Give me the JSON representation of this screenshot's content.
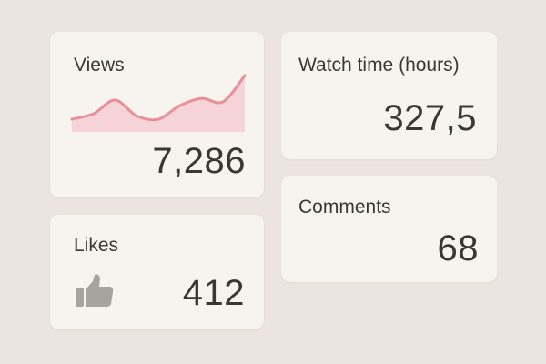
{
  "cards": {
    "views": {
      "title": "Views",
      "value": "7,286",
      "sparkline_color": "#e8909a",
      "sparkline_fill": "#f6d3d6",
      "sparkline": [
        0.2,
        0.3,
        0.55,
        0.26,
        0.2,
        0.45,
        0.58,
        0.52,
        1.0
      ]
    },
    "watch_time": {
      "title": "Watch time (hours)",
      "value": "327,5"
    },
    "likes": {
      "title": "Likes",
      "value": "412",
      "icon": "thumbs-up-icon",
      "icon_color": "#a7a49f"
    },
    "comments": {
      "title": "Comments",
      "value": "68"
    }
  },
  "colors": {
    "background": "#ece4de",
    "card": "#f7f4ef",
    "text": "#3b3734"
  }
}
